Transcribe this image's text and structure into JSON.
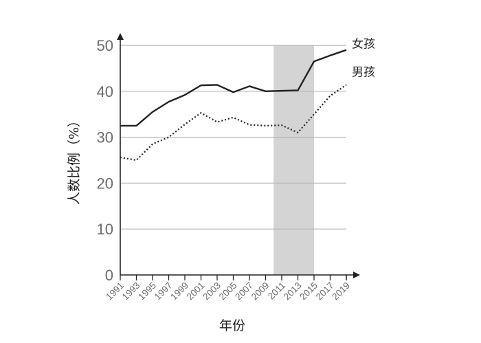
{
  "chart_data": {
    "type": "line",
    "title": "",
    "xlabel": "年份",
    "ylabel": "人数比例（%）",
    "ylim": [
      0,
      50
    ],
    "yticks": [
      "0",
      "10",
      "20",
      "30",
      "40",
      "50"
    ],
    "x": [
      1991,
      1993,
      1995,
      1997,
      1999,
      2001,
      2003,
      2005,
      2007,
      2009,
      2011,
      2013,
      2015,
      2017,
      2019
    ],
    "x_tick_labels": [
      "1991",
      "1993",
      "1995",
      "1997",
      "1999",
      "2001",
      "2003",
      "2005",
      "2007",
      "2009",
      "2011",
      "2013",
      "2015",
      "2017",
      "2019"
    ],
    "xlim": [
      1991,
      2019
    ],
    "grid": "horizontal",
    "shaded_region": {
      "x_start": 2010,
      "x_end": 2015,
      "color": "#d4d4d4"
    },
    "series": [
      {
        "name": "女孩",
        "style": "solid",
        "color": "#222222",
        "x": [
          1991,
          1993,
          1995,
          1997,
          1999,
          2001,
          2003,
          2005,
          2007,
          2009,
          2011,
          2013,
          2015,
          2017,
          2019
        ],
        "values": [
          32.5,
          32.5,
          35.5,
          37.7,
          39.2,
          41.3,
          41.4,
          39.8,
          41.1,
          40.0,
          40.1,
          40.2,
          46.5,
          47.8,
          49.0
        ]
      },
      {
        "name": "男孩",
        "style": "dotted",
        "color": "#222222",
        "x": [
          1991,
          1993,
          1995,
          1997,
          1999,
          2001,
          2003,
          2005,
          2007,
          2009,
          2011,
          2013,
          2015,
          2017,
          2019
        ],
        "values": [
          25.6,
          25.0,
          28.5,
          30.0,
          32.8,
          35.3,
          33.3,
          34.3,
          32.7,
          32.5,
          32.6,
          31.0,
          35.0,
          39.0,
          41.4
        ]
      }
    ]
  }
}
